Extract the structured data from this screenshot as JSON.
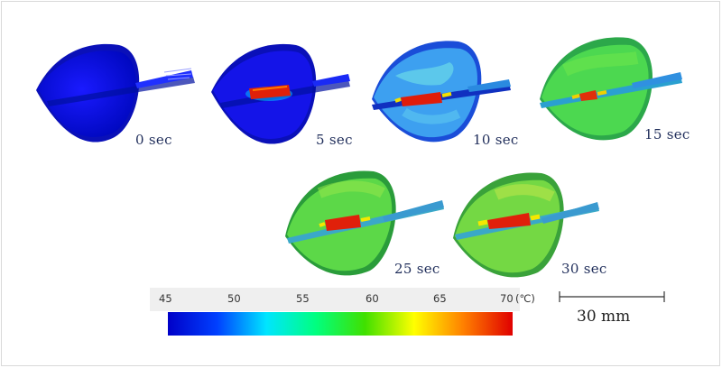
{
  "frames": [
    {
      "time_label": "0 sec",
      "state": "0s"
    },
    {
      "time_label": "5 sec",
      "state": "5s"
    },
    {
      "time_label": "10 sec",
      "state": "10s"
    },
    {
      "time_label": "15 sec",
      "state": "15s"
    },
    {
      "time_label": "25 sec",
      "state": "25s"
    },
    {
      "time_label": "30 sec",
      "state": "30s"
    }
  ],
  "colorbar": {
    "ticks": [
      "45",
      "50",
      "55",
      "60",
      "65",
      "70"
    ],
    "unit": "(℃)",
    "min": 45,
    "max": 70,
    "colors": [
      "#0000c8",
      "#0040ff",
      "#00e5ff",
      "#00ff80",
      "#40e000",
      "#ffff00",
      "#ff8000",
      "#e00000"
    ]
  },
  "scale_bar": {
    "label": "30 mm"
  }
}
